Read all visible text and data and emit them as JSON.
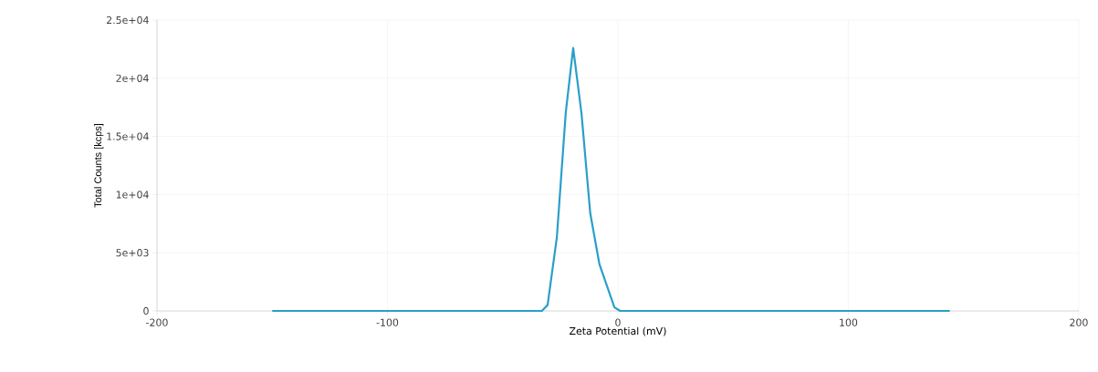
{
  "chart_data": {
    "type": "line",
    "xlabel": "Zeta Potential (mV)",
    "ylabel": "Total Counts [kcps]",
    "x": [
      -150,
      -33,
      -30.5,
      -26.5,
      -22.6,
      -19.4,
      -15.8,
      -12,
      -8,
      -1.5,
      1,
      144
    ],
    "series": [
      {
        "color": "#2a9fc9",
        "values": [
          0,
          0,
          500,
          6300,
          17100,
          22600,
          17000,
          8400,
          4000,
          300,
          0,
          0
        ]
      }
    ],
    "xlim": [
      -200,
      200
    ],
    "xticks": [
      -200,
      -100,
      0,
      100,
      200
    ],
    "ylim": [
      0,
      25000
    ],
    "yticks": [
      {
        "value": 0,
        "label": "0"
      },
      {
        "value": 5000,
        "label": "5e+03"
      },
      {
        "value": 10000,
        "label": "1e+04"
      },
      {
        "value": 15000,
        "label": "1.5e+04"
      },
      {
        "value": 20000,
        "label": "2e+04"
      },
      {
        "value": 25000,
        "label": "2.5e+04"
      }
    ],
    "grid": true,
    "marker": "none",
    "line_style": "solid"
  }
}
